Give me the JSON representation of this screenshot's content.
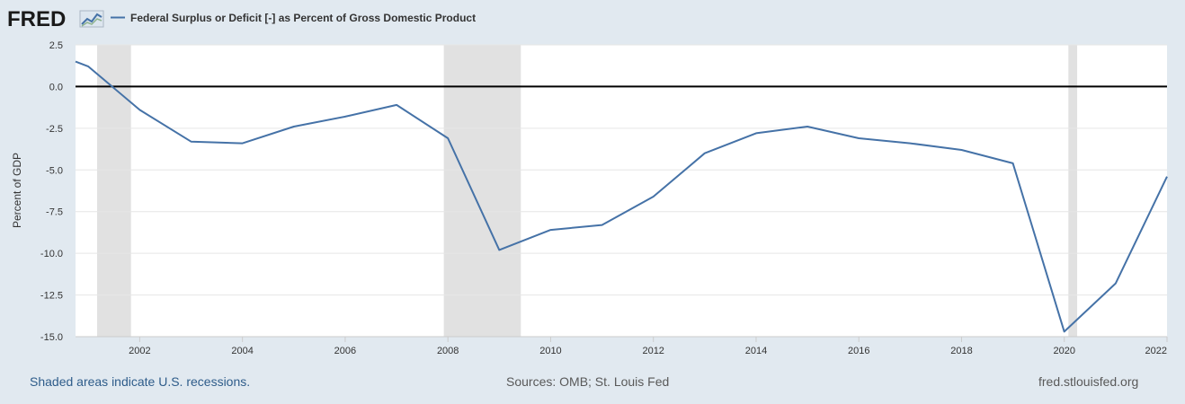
{
  "brand": {
    "logo_text": "FRED",
    "logo_icon": "trend-line-icon"
  },
  "legend": {
    "label": "Federal Surplus or Deficit [-] as Percent of Gross Domestic Product"
  },
  "footer": {
    "recessions_note": "Shaded areas indicate U.S. recessions.",
    "sources": "Sources: OMB; St. Louis Fed",
    "site": "fred.stlouisfed.org"
  },
  "colors": {
    "line": "#4572a7",
    "recession": "#e1e1e1",
    "background": "#e1e9f0",
    "plot": "#ffffff",
    "zero_line": "#000000"
  },
  "chart_data": {
    "type": "line",
    "title": "",
    "xlabel": "",
    "ylabel": "Percent of GDP",
    "ylim": [
      -15.0,
      2.5
    ],
    "xlim": [
      2000.75,
      2022.0
    ],
    "y_ticks": [
      "2.5",
      "0.0",
      "-2.5",
      "-5.0",
      "-7.5",
      "-10.0",
      "-12.5",
      "-15.0"
    ],
    "y_tick_values": [
      2.5,
      0.0,
      -2.5,
      -5.0,
      -7.5,
      -10.0,
      -12.5,
      -15.0
    ],
    "x_ticks": [
      "2002",
      "2004",
      "2006",
      "2008",
      "2010",
      "2012",
      "2014",
      "2016",
      "2018",
      "2020",
      "2022"
    ],
    "x_tick_values": [
      2002,
      2004,
      2006,
      2008,
      2010,
      2012,
      2014,
      2016,
      2018,
      2020,
      2022
    ],
    "reference_line": 0.0,
    "grid": true,
    "recessions": [
      {
        "start": 2001.17,
        "end": 2001.83
      },
      {
        "start": 2007.92,
        "end": 2009.42
      },
      {
        "start": 2020.08,
        "end": 2020.25
      }
    ],
    "series": [
      {
        "name": "Federal Surplus or Deficit [-] as Percent of Gross Domestic Product",
        "x": [
          2000.75,
          2001,
          2002,
          2003,
          2004,
          2005,
          2006,
          2007,
          2008,
          2009,
          2010,
          2011,
          2012,
          2013,
          2014,
          2015,
          2016,
          2017,
          2018,
          2019,
          2020,
          2021,
          2022
        ],
        "values": [
          1.5,
          1.2,
          -1.4,
          -3.3,
          -3.4,
          -2.4,
          -1.8,
          -1.1,
          -3.1,
          -9.8,
          -8.6,
          -8.3,
          -6.6,
          -4.0,
          -2.8,
          -2.4,
          -3.1,
          -3.4,
          -3.8,
          -4.6,
          -14.7,
          -11.8,
          -5.4
        ]
      }
    ]
  }
}
